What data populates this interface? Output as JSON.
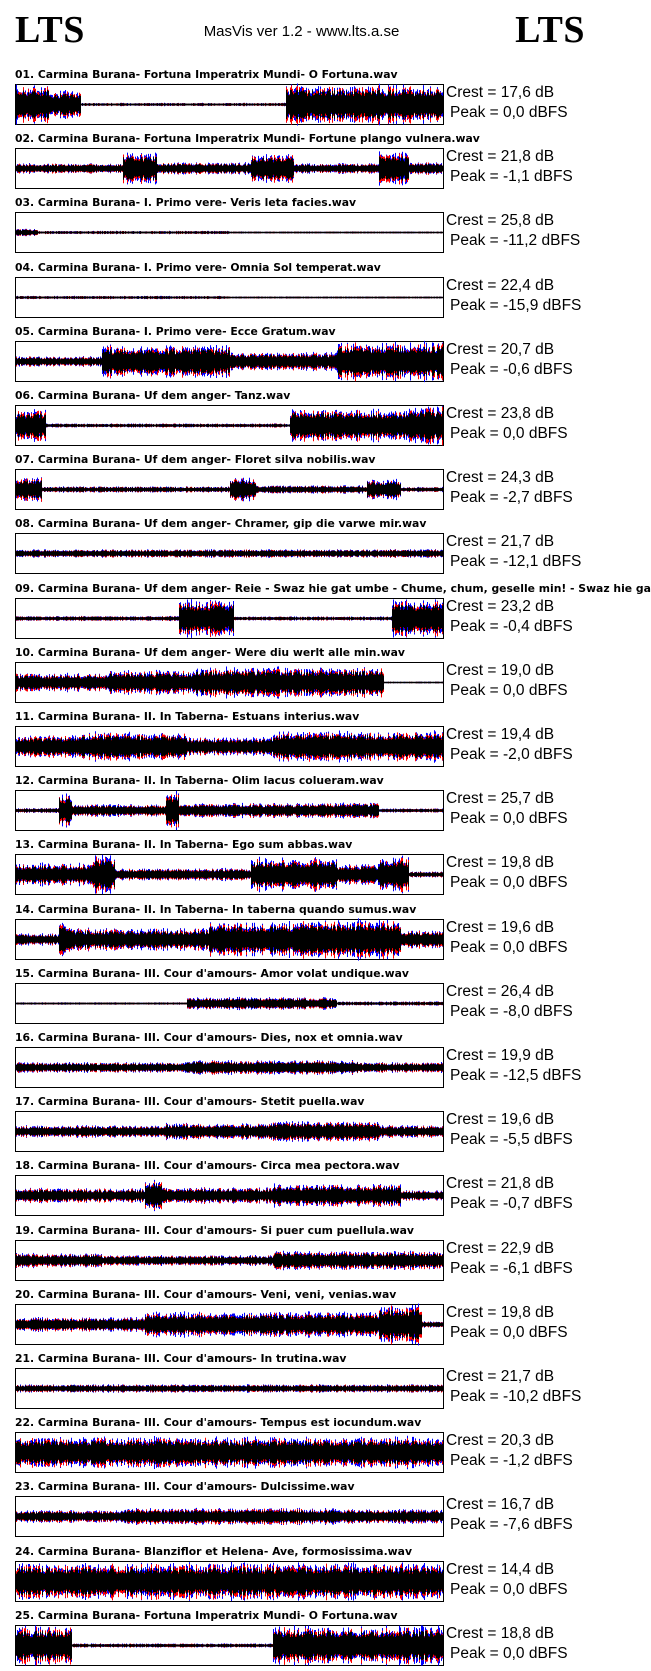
{
  "header": {
    "logo_left": "LTS",
    "app_title": "MasVis ver 1.2 - www.lts.a.se",
    "logo_right": "LTS"
  },
  "colors": {
    "waveform": "#000000",
    "left_channel": "#ff0000",
    "right_channel": "#0000ff"
  },
  "tracks": [
    {
      "title": "01. Carmina Burana- Fortuna Imperatrix Mundi- O Fortuna.wav",
      "crest": "Crest = 17,6 dB",
      "peak": "Peak = 0,0 dBFS"
    },
    {
      "title": "02. Carmina Burana- Fortuna Imperatrix Mundi- Fortune plango vulnera.wav",
      "crest": "Crest = 21,8 dB",
      "peak": "Peak = -1,1 dBFS"
    },
    {
      "title": "03. Carmina Burana- I. Primo vere- Veris leta facies.wav",
      "crest": "Crest = 25,8 dB",
      "peak": "Peak = -11,2 dBFS"
    },
    {
      "title": "04. Carmina Burana- I. Primo vere- Omnia Sol temperat.wav",
      "crest": "Crest = 22,4 dB",
      "peak": "Peak = -15,9 dBFS"
    },
    {
      "title": "05. Carmina Burana- I. Primo vere- Ecce Gratum.wav",
      "crest": "Crest = 20,7 dB",
      "peak": "Peak = -0,6 dBFS"
    },
    {
      "title": "06. Carmina Burana- Uf dem anger- Tanz.wav",
      "crest": "Crest = 23,8 dB",
      "peak": "Peak = 0,0 dBFS"
    },
    {
      "title": "07. Carmina Burana- Uf dem anger- Floret silva nobilis.wav",
      "crest": "Crest = 24,3 dB",
      "peak": "Peak = -2,7 dBFS"
    },
    {
      "title": "08. Carmina Burana- Uf dem anger- Chramer, gip die varwe mir.wav",
      "crest": "Crest = 21,7 dB",
      "peak": "Peak = -12,1 dBFS"
    },
    {
      "title": "09. Carmina Burana- Uf dem anger- Reie - Swaz hie gat umbe - Chume, chum, geselle min! - Swaz hie ga",
      "crest": "Crest = 23,2 dB",
      "peak": "Peak = -0,4 dBFS"
    },
    {
      "title": "10. Carmina Burana- Uf dem anger- Were diu werlt alle min.wav",
      "crest": "Crest = 19,0 dB",
      "peak": "Peak = 0,0 dBFS"
    },
    {
      "title": "11. Carmina Burana- II. In Taberna- Estuans interius.wav",
      "crest": "Crest = 19,4 dB",
      "peak": "Peak = -2,0 dBFS"
    },
    {
      "title": "12. Carmina Burana- II. In Taberna- Olim lacus colueram.wav",
      "crest": "Crest = 25,7 dB",
      "peak": "Peak = 0,0 dBFS"
    },
    {
      "title": "13. Carmina Burana- II. In Taberna- Ego sum abbas.wav",
      "crest": "Crest = 19,8 dB",
      "peak": "Peak = 0,0 dBFS"
    },
    {
      "title": "14. Carmina Burana- II. In Taberna- In taberna quando sumus.wav",
      "crest": "Crest = 19,6 dB",
      "peak": "Peak = 0,0 dBFS"
    },
    {
      "title": "15. Carmina Burana- III. Cour d'amours- Amor volat undique.wav",
      "crest": "Crest = 26,4 dB",
      "peak": "Peak = -8,0 dBFS"
    },
    {
      "title": "16. Carmina Burana- III. Cour d'amours- Dies, nox et omnia.wav",
      "crest": "Crest = 19,9 dB",
      "peak": "Peak = -12,5 dBFS"
    },
    {
      "title": "17. Carmina Burana- III. Cour d'amours- Stetit puella.wav",
      "crest": "Crest = 19,6 dB",
      "peak": "Peak = -5,5 dBFS"
    },
    {
      "title": "18. Carmina Burana- III. Cour d'amours- Circa mea pectora.wav",
      "crest": "Crest = 21,8 dB",
      "peak": "Peak = -0,7 dBFS"
    },
    {
      "title": "19. Carmina Burana- III. Cour d'amours- Si puer cum puellula.wav",
      "crest": "Crest = 22,9 dB",
      "peak": "Peak = -6,1 dBFS"
    },
    {
      "title": "20. Carmina Burana- III. Cour d'amours- Veni, veni, venias.wav",
      "crest": "Crest = 19,8 dB",
      "peak": "Peak = 0,0 dBFS"
    },
    {
      "title": "21. Carmina Burana- III. Cour d'amours- In trutina.wav",
      "crest": "Crest = 21,7 dB",
      "peak": "Peak = -10,2 dBFS"
    },
    {
      "title": "22. Carmina Burana- III. Cour d'amours- Tempus est iocundum.wav",
      "crest": "Crest = 20,3 dB",
      "peak": "Peak = -1,2 dBFS"
    },
    {
      "title": "23. Carmina Burana- III. Cour d'amours- Dulcissime.wav",
      "crest": "Crest = 16,7 dB",
      "peak": "Peak = -7,6 dBFS"
    },
    {
      "title": "24. Carmina Burana- Blanziflor et Helena- Ave, formosissima.wav",
      "crest": "Crest = 14,4 dB",
      "peak": "Peak = 0,0 dBFS"
    },
    {
      "title": "25. Carmina Burana- Fortuna Imperatrix Mundi- O Fortuna.wav",
      "crest": "Crest = 18,8 dB",
      "peak": "Peak = 0,0 dBFS"
    }
  ]
}
